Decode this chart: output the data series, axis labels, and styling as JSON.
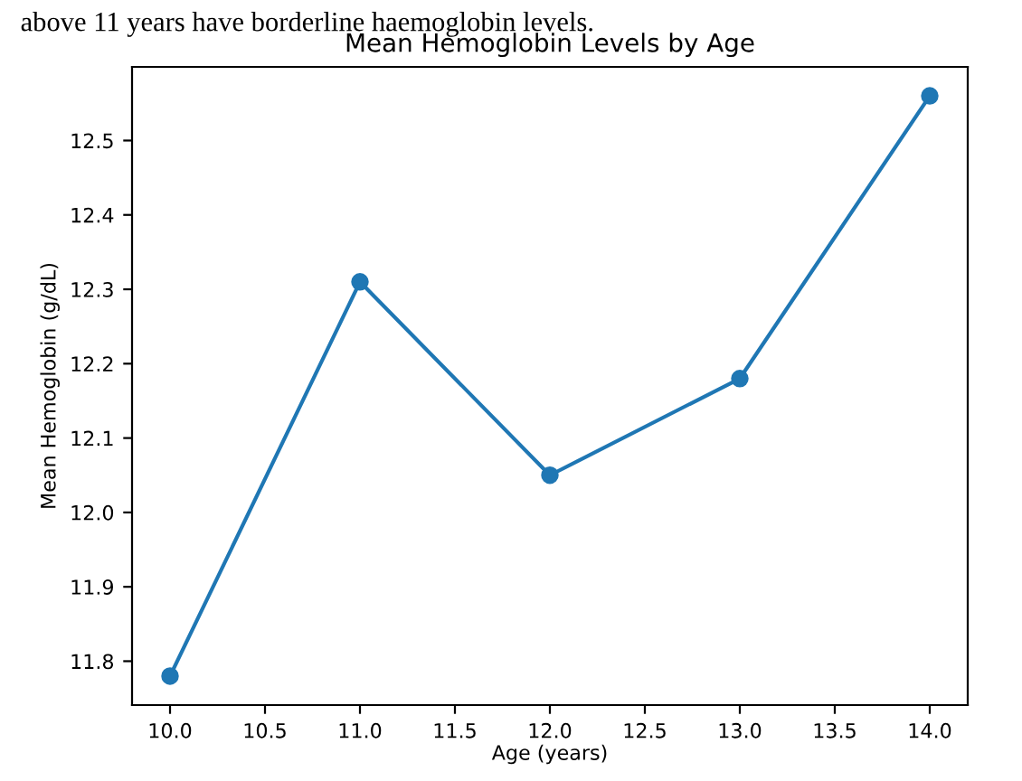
{
  "chart_data": {
    "type": "line",
    "title": "Mean Hemoglobin Levels by Age",
    "xlabel": "Age (years)",
    "ylabel": "Mean Hemoglobin (g/dL)",
    "annotations": [
      "above 11 years have borderline haemoglobin levels."
    ],
    "x": [
      10,
      11,
      12,
      13,
      14
    ],
    "series": [
      {
        "color": "#1f77b4",
        "values": [
          11.78,
          12.31,
          12.05,
          12.18,
          12.56
        ]
      }
    ],
    "xlim": [
      9.8,
      14.2
    ],
    "xticks": [
      {
        "value": 10,
        "label": "10.0"
      },
      {
        "value": 10.5,
        "label": "10.5"
      },
      {
        "value": 11,
        "label": "11.0"
      },
      {
        "value": 11.5,
        "label": "11.5"
      },
      {
        "value": 12,
        "label": "12.0"
      },
      {
        "value": 12.5,
        "label": "12.5"
      },
      {
        "value": 13,
        "label": "13.0"
      },
      {
        "value": 13.5,
        "label": "13.5"
      },
      {
        "value": 14,
        "label": "14.0"
      }
    ],
    "ylim": [
      11.741,
      12.599
    ],
    "yticks": [
      11.8,
      11.9,
      {
        "value": 12,
        "label": "12.0"
      },
      12.1,
      12.2,
      12.3,
      12.4,
      12.5
    ],
    "marker": "circle",
    "line_style": "solid",
    "grid": false,
    "legend": false
  }
}
